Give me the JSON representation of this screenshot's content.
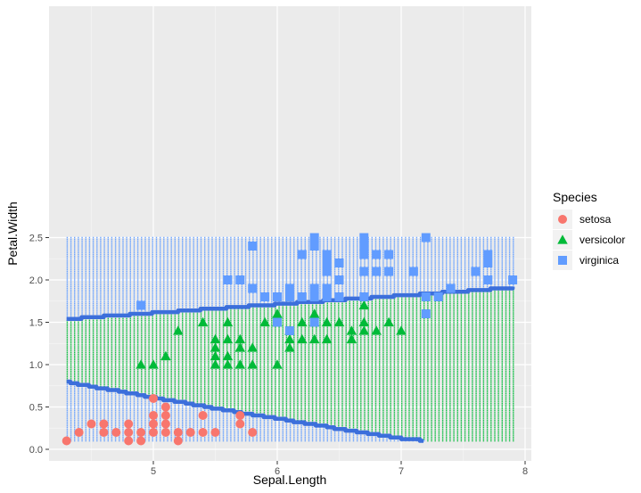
{
  "chart_data": {
    "type": "scatter",
    "title": "",
    "xlabel": "Sepal.Length",
    "ylabel": "Petal.Width",
    "xlim": [
      4.3,
      7.9
    ],
    "ylim": [
      0.1,
      2.5
    ],
    "x_ticks": [
      5,
      6,
      7,
      8
    ],
    "y_ticks": [
      0.0,
      0.5,
      1.0,
      1.5,
      2.0,
      2.5
    ],
    "x_tick_labels": [
      "5",
      "6",
      "7",
      "8"
    ],
    "y_tick_labels": [
      "0.0",
      "0.5",
      "1.0",
      "1.5",
      "2.0",
      "2.5"
    ],
    "grid": true,
    "legend_title": "Species",
    "legend_position": "right",
    "background_grid": {
      "x_step": 0.03,
      "y_step": 0.02,
      "regions": {
        "setosa": "below lower boundary",
        "versicolor": "between boundaries",
        "virginica": "above upper boundary"
      }
    },
    "boundaries": [
      {
        "name": "upper",
        "x": [
          4.3,
          7.9
        ],
        "y": [
          1.54,
          1.91
        ]
      },
      {
        "name": "lower",
        "x": [
          4.3,
          4.5,
          5.0,
          5.5,
          6.0,
          6.5,
          7.0,
          7.2
        ],
        "y": [
          0.79,
          0.74,
          0.61,
          0.48,
          0.36,
          0.24,
          0.13,
          0.1
        ]
      }
    ],
    "series": [
      {
        "name": "setosa",
        "color": "#F8766D",
        "shape": "circle",
        "points": [
          [
            4.3,
            0.1
          ],
          [
            4.4,
            0.2
          ],
          [
            4.5,
            0.3
          ],
          [
            4.6,
            0.2
          ],
          [
            4.6,
            0.3
          ],
          [
            4.7,
            0.2
          ],
          [
            4.8,
            0.1
          ],
          [
            4.8,
            0.2
          ],
          [
            4.8,
            0.3
          ],
          [
            4.9,
            0.1
          ],
          [
            4.9,
            0.2
          ],
          [
            5.0,
            0.2
          ],
          [
            5.0,
            0.3
          ],
          [
            5.0,
            0.4
          ],
          [
            5.0,
            0.6
          ],
          [
            5.1,
            0.2
          ],
          [
            5.1,
            0.3
          ],
          [
            5.1,
            0.4
          ],
          [
            5.1,
            0.5
          ],
          [
            5.2,
            0.1
          ],
          [
            5.2,
            0.2
          ],
          [
            5.3,
            0.2
          ],
          [
            5.4,
            0.2
          ],
          [
            5.4,
            0.4
          ],
          [
            5.5,
            0.2
          ],
          [
            5.7,
            0.3
          ],
          [
            5.7,
            0.4
          ],
          [
            5.8,
            0.2
          ]
        ]
      },
      {
        "name": "versicolor",
        "color": "#00BA38",
        "shape": "triangle",
        "points": [
          [
            4.9,
            1.0
          ],
          [
            5.0,
            1.0
          ],
          [
            5.1,
            1.1
          ],
          [
            5.2,
            1.4
          ],
          [
            5.4,
            1.5
          ],
          [
            5.5,
            1.0
          ],
          [
            5.5,
            1.1
          ],
          [
            5.5,
            1.2
          ],
          [
            5.5,
            1.3
          ],
          [
            5.6,
            1.0
          ],
          [
            5.6,
            1.1
          ],
          [
            5.6,
            1.3
          ],
          [
            5.6,
            1.5
          ],
          [
            5.7,
            1.0
          ],
          [
            5.7,
            1.2
          ],
          [
            5.7,
            1.3
          ],
          [
            5.8,
            1.0
          ],
          [
            5.8,
            1.2
          ],
          [
            5.9,
            1.5
          ],
          [
            6.0,
            1.0
          ],
          [
            6.0,
            1.5
          ],
          [
            6.0,
            1.6
          ],
          [
            6.1,
            1.2
          ],
          [
            6.1,
            1.3
          ],
          [
            6.1,
            1.4
          ],
          [
            6.2,
            1.3
          ],
          [
            6.2,
            1.5
          ],
          [
            6.3,
            1.3
          ],
          [
            6.3,
            1.5
          ],
          [
            6.3,
            1.6
          ],
          [
            6.4,
            1.3
          ],
          [
            6.4,
            1.5
          ],
          [
            6.5,
            1.5
          ],
          [
            6.6,
            1.3
          ],
          [
            6.6,
            1.4
          ],
          [
            6.7,
            1.4
          ],
          [
            6.7,
            1.5
          ],
          [
            6.7,
            1.7
          ],
          [
            6.8,
            1.4
          ],
          [
            6.9,
            1.5
          ],
          [
            7.0,
            1.4
          ]
        ]
      },
      {
        "name": "virginica",
        "color": "#619CFF",
        "shape": "square",
        "points": [
          [
            4.9,
            1.7
          ],
          [
            5.6,
            2.0
          ],
          [
            5.7,
            2.0
          ],
          [
            5.8,
            1.9
          ],
          [
            5.8,
            2.4
          ],
          [
            5.9,
            1.8
          ],
          [
            6.0,
            1.5
          ],
          [
            6.0,
            1.8
          ],
          [
            6.1,
            1.4
          ],
          [
            6.1,
            1.8
          ],
          [
            6.1,
            1.9
          ],
          [
            6.2,
            1.8
          ],
          [
            6.2,
            2.3
          ],
          [
            6.3,
            1.8
          ],
          [
            6.3,
            1.9
          ],
          [
            6.3,
            2.4
          ],
          [
            6.3,
            2.5
          ],
          [
            6.4,
            1.8
          ],
          [
            6.4,
            1.9
          ],
          [
            6.4,
            2.1
          ],
          [
            6.4,
            2.2
          ],
          [
            6.4,
            2.3
          ],
          [
            6.5,
            1.8
          ],
          [
            6.5,
            2.0
          ],
          [
            6.5,
            2.2
          ],
          [
            6.7,
            1.8
          ],
          [
            6.7,
            2.1
          ],
          [
            6.7,
            2.3
          ],
          [
            6.7,
            2.4
          ],
          [
            6.7,
            2.5
          ],
          [
            6.8,
            2.1
          ],
          [
            6.8,
            2.3
          ],
          [
            6.9,
            2.1
          ],
          [
            6.9,
            2.3
          ],
          [
            7.1,
            2.1
          ],
          [
            7.2,
            1.6
          ],
          [
            7.2,
            1.8
          ],
          [
            7.2,
            2.5
          ],
          [
            7.3,
            1.8
          ],
          [
            7.4,
            1.9
          ],
          [
            7.6,
            2.1
          ],
          [
            7.7,
            2.0
          ],
          [
            7.7,
            2.2
          ],
          [
            7.7,
            2.3
          ],
          [
            7.9,
            2.0
          ],
          [
            6.3,
            1.5
          ],
          [
            6.5,
            1.8
          ]
        ]
      }
    ]
  }
}
